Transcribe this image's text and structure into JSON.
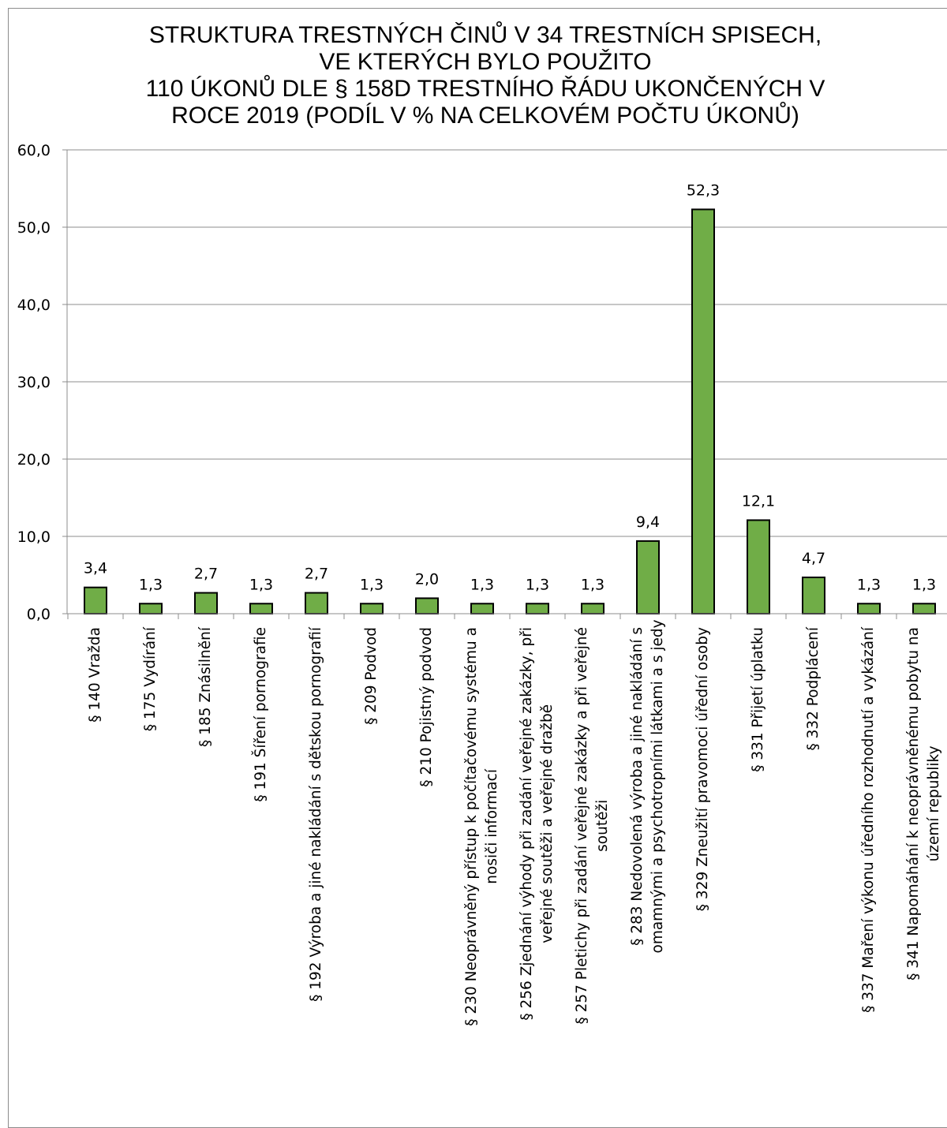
{
  "chart_data": {
    "type": "bar",
    "title_lines": [
      "STRUKTURA TRESTNÝCH ČINŮ V 34 TRESTNÍCH SPISECH,",
      "VE KTERÝCH BYLO POUŽITO",
      "110 ÚKONŮ DLE § 158D TRESTNÍHO ŘÁDU UKONČENÝCH V",
      "ROCE 2019 (PODÍL V % NA CELKOVÉM POČTU ÚKONŮ)"
    ],
    "categories": [
      [
        "§ 140 Vražda"
      ],
      [
        "§ 175 Vydírání"
      ],
      [
        "§ 185 Znásilnění"
      ],
      [
        "§ 191 Šíření pornografie"
      ],
      [
        "§ 192 Výroba a jiné nakládání s dětskou pornografií"
      ],
      [
        "§ 209 Podvod"
      ],
      [
        "§ 210 Pojistný podvod"
      ],
      [
        "§ 230 Neoprávněný přístup k počítačovému systému a",
        "nosiči informací"
      ],
      [
        "§ 256 Zjednání výhody při zadání veřejné zakázky, při",
        "veřejné soutěži a veřejné dražbě"
      ],
      [
        "§ 257 Pletichy při zadání veřejné zakázky a při veřejné",
        "soutěži"
      ],
      [
        "§ 283 Nedovolená výroba a jiné nakládání s",
        "omamnými a psychotropními látkami a s jedy"
      ],
      [
        "§ 329 Zneužití pravomoci úřední osoby"
      ],
      [
        "§ 331 Přijetí úplatku"
      ],
      [
        "§ 332 Podplácení"
      ],
      [
        "§ 337 Maření výkonu úředního rozhodnutí a vykázání"
      ],
      [
        "§ 341 Napomáhání k neoprávněnému pobytu na",
        "území republiky"
      ]
    ],
    "values": [
      3.4,
      1.3,
      2.7,
      1.3,
      2.7,
      1.3,
      2.0,
      1.3,
      1.3,
      1.3,
      9.4,
      52.3,
      12.1,
      4.7,
      1.3,
      1.3
    ],
    "value_labels": [
      "3,4",
      "1,3",
      "2,7",
      "1,3",
      "2,7",
      "1,3",
      "2,0",
      "1,3",
      "1,3",
      "1,3",
      "9,4",
      "52,3",
      "12,1",
      "4,7",
      "1,3",
      "1,3"
    ],
    "y_ticks": [
      "0,0",
      "10,0",
      "20,0",
      "30,0",
      "40,0",
      "50,0",
      "60,0"
    ],
    "ylim": [
      0,
      60
    ],
    "grid": true,
    "legend": "none",
    "colors": {
      "bar_fill": "#70ad47",
      "bar_stroke": "#000000",
      "grid": "#8c8c8c"
    }
  }
}
